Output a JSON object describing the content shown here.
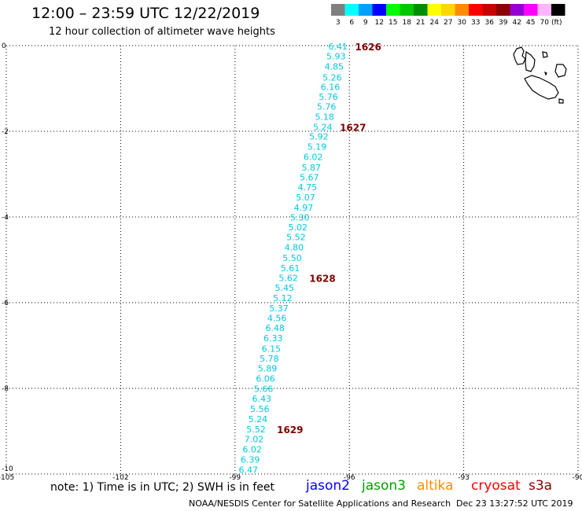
{
  "header": {
    "title": "12:00 – 23:59 UTC 12/22/2019",
    "subtitle": "12 hour collection of altimeter wave heights"
  },
  "legend": {
    "unit": "(ft)",
    "entries": [
      {
        "label": "3",
        "color": "#808080"
      },
      {
        "label": "6",
        "color": "#00ffff"
      },
      {
        "label": "9",
        "color": "#00a0ff"
      },
      {
        "label": "12",
        "color": "#0000ff"
      },
      {
        "label": "15",
        "color": "#00ff00"
      },
      {
        "label": "18",
        "color": "#00c800"
      },
      {
        "label": "21",
        "color": "#008c00"
      },
      {
        "label": "24",
        "color": "#ffff00"
      },
      {
        "label": "27",
        "color": "#ffd700"
      },
      {
        "label": "30",
        "color": "#ff8c00"
      },
      {
        "label": "33",
        "color": "#ff0000"
      },
      {
        "label": "36",
        "color": "#c80000"
      },
      {
        "label": "39",
        "color": "#8b0000"
      },
      {
        "label": "42",
        "color": "#9400d3"
      },
      {
        "label": "45",
        "color": "#ff00ff"
      },
      {
        "label": "70",
        "color": "#ffb4ff"
      },
      {
        "label": "",
        "color": "#000000"
      }
    ]
  },
  "map": {
    "lon_range": [
      -105,
      -90
    ],
    "lat_range": [
      -10,
      0
    ],
    "lon_ticks": [
      "-105",
      "-102",
      "-99",
      "-96",
      "-93",
      "-90"
    ],
    "lat_ticks": [
      "0",
      "-2",
      "-4",
      "-6",
      "-8",
      "-10"
    ],
    "gridlines": true,
    "wave_color": "#00c8e0",
    "time_color": "#800000",
    "wave_heights": [
      {
        "lon": -96.3,
        "lat": -0.02,
        "v": "6.41"
      },
      {
        "lon": -96.35,
        "lat": -0.25,
        "v": "5.93"
      },
      {
        "lon": -96.4,
        "lat": -0.49,
        "v": "4.85"
      },
      {
        "lon": -96.45,
        "lat": -0.74,
        "v": "5.26"
      },
      {
        "lon": -96.5,
        "lat": -0.96,
        "v": "6.16"
      },
      {
        "lon": -96.55,
        "lat": -1.19,
        "v": "5.76"
      },
      {
        "lon": -96.6,
        "lat": -1.42,
        "v": "5.76"
      },
      {
        "lon": -96.65,
        "lat": -1.66,
        "v": "5.18"
      },
      {
        "lon": -96.7,
        "lat": -1.9,
        "v": "5.24"
      },
      {
        "lon": -96.8,
        "lat": -2.12,
        "v": "5.92"
      },
      {
        "lon": -96.85,
        "lat": -2.36,
        "v": "5.19"
      },
      {
        "lon": -96.95,
        "lat": -2.6,
        "v": "6.02"
      },
      {
        "lon": -97.0,
        "lat": -2.84,
        "v": "5.87"
      },
      {
        "lon": -97.05,
        "lat": -3.07,
        "v": "5.67"
      },
      {
        "lon": -97.1,
        "lat": -3.3,
        "v": "4.75"
      },
      {
        "lon": -97.15,
        "lat": -3.54,
        "v": "5.07"
      },
      {
        "lon": -97.2,
        "lat": -3.78,
        "v": "4.97"
      },
      {
        "lon": -97.3,
        "lat": -4.01,
        "v": "5.30"
      },
      {
        "lon": -97.35,
        "lat": -4.24,
        "v": "5.02"
      },
      {
        "lon": -97.4,
        "lat": -4.47,
        "v": "5.52"
      },
      {
        "lon": -97.45,
        "lat": -4.71,
        "v": "4.80"
      },
      {
        "lon": -97.5,
        "lat": -4.95,
        "v": "5.50"
      },
      {
        "lon": -97.55,
        "lat": -5.19,
        "v": "5.61"
      },
      {
        "lon": -97.6,
        "lat": -5.42,
        "v": "5.62"
      },
      {
        "lon": -97.7,
        "lat": -5.65,
        "v": "5.45"
      },
      {
        "lon": -97.75,
        "lat": -5.89,
        "v": "5.12"
      },
      {
        "lon": -97.85,
        "lat": -6.13,
        "v": "5.37"
      },
      {
        "lon": -97.9,
        "lat": -6.36,
        "v": "4.56"
      },
      {
        "lon": -97.95,
        "lat": -6.59,
        "v": "6.48"
      },
      {
        "lon": -98.0,
        "lat": -6.83,
        "v": "6.33"
      },
      {
        "lon": -98.05,
        "lat": -7.07,
        "v": "6.15"
      },
      {
        "lon": -98.1,
        "lat": -7.3,
        "v": "5.78"
      },
      {
        "lon": -98.15,
        "lat": -7.53,
        "v": "5.89"
      },
      {
        "lon": -98.2,
        "lat": -7.77,
        "v": "6.06"
      },
      {
        "lon": -98.25,
        "lat": -8.01,
        "v": "5.66"
      },
      {
        "lon": -98.3,
        "lat": -8.24,
        "v": "6.43"
      },
      {
        "lon": -98.35,
        "lat": -8.48,
        "v": "5.56"
      },
      {
        "lon": -98.4,
        "lat": -8.72,
        "v": "5.24"
      },
      {
        "lon": -98.45,
        "lat": -8.95,
        "v": "5.52"
      },
      {
        "lon": -98.5,
        "lat": -9.18,
        "v": "7.02"
      },
      {
        "lon": -98.55,
        "lat": -9.42,
        "v": "6.02"
      },
      {
        "lon": -98.6,
        "lat": -9.66,
        "v": "6.39"
      },
      {
        "lon": -98.65,
        "lat": -9.9,
        "v": "6.47"
      }
    ],
    "time_labels": [
      {
        "lon": -95.85,
        "lat": -0.02,
        "v": "1626"
      },
      {
        "lon": -96.25,
        "lat": -1.9,
        "v": "1627"
      },
      {
        "lon": -97.05,
        "lat": -5.42,
        "v": "1628"
      },
      {
        "lon": -97.9,
        "lat": -8.95,
        "v": "1629"
      }
    ]
  },
  "footer": {
    "note": "note: 1) Time is in UTC; 2) SWH is in feet",
    "satellites": [
      {
        "name": "jason2",
        "color": "#0000ff"
      },
      {
        "name": "jason3",
        "color": "#00a000"
      },
      {
        "name": "altika",
        "color": "#ff8c00"
      },
      {
        "name": "cryosat",
        "color": "#ff0000"
      },
      {
        "name": "s3a",
        "color": "#8b0000"
      }
    ],
    "credit": "NOAA/NESDIS Center for Satellite Applications and Research",
    "timestamp": "Dec 23 13:27:52 UTC 2019"
  }
}
